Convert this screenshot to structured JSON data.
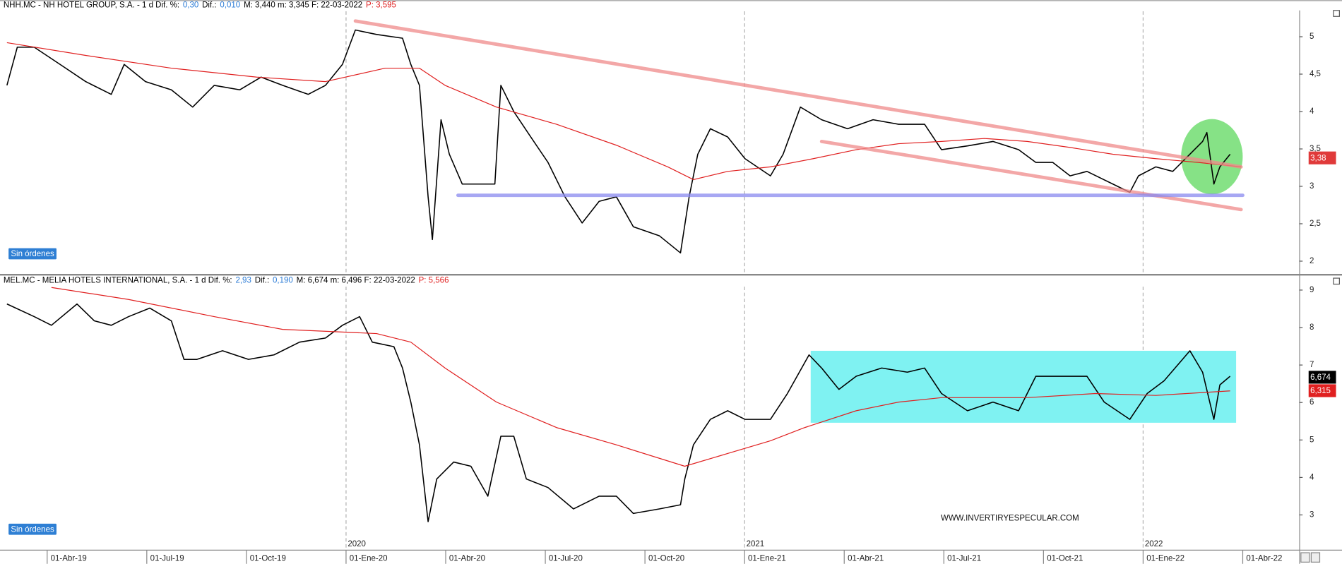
{
  "chart_data": [
    {
      "type": "line",
      "header": [
        {
          "text": "NHH.MC - NH HOTEL GROUP, S.A. -  1 d  Dif. %:",
          "color": "#000000"
        },
        {
          "text": "0,30",
          "color": "#2b7bd6"
        },
        {
          "text": "Dif.:",
          "color": "#000000"
        },
        {
          "text": "0,010",
          "color": "#2b7bd6"
        },
        {
          "text": "M: 3,440  m: 3,345  F: 22-03-2022",
          "color": "#000000"
        },
        {
          "text": "P: 3,595",
          "color": "#e02020"
        }
      ],
      "orders_button": "Sin órdenes",
      "xlim": [
        -1.42,
        37.7
      ],
      "ylim": [
        1.83,
        5.34
      ],
      "yticks": [
        2,
        {
          "value": 2.5,
          "label": "2,5"
        },
        3,
        {
          "value": 3.5,
          "label": "3,5"
        },
        4,
        {
          "value": 4.5,
          "label": "4,5"
        },
        5
      ],
      "series": [
        {
          "color": "#000000",
          "x": [
            -1.21,
            -0.9,
            -0.39,
            0.39,
            1.16,
            1.93,
            2.32,
            2.96,
            3.74,
            4.38,
            5.03,
            5.8,
            6.44,
            7.09,
            7.86,
            8.38,
            8.89,
            9.28,
            9.92,
            10.7,
            10.95,
            11.21,
            11.47,
            11.6,
            11.86,
            12.11,
            12.5,
            13.02,
            13.48,
            13.66,
            14.05,
            14.56,
            15.08,
            15.59,
            16.11,
            16.62,
            17.14,
            17.65,
            18.43,
            19.07,
            19.33,
            19.59,
            19.97,
            20.49,
            21.01,
            21.78,
            22.16,
            22.68,
            23.32,
            24.1,
            24.87,
            25.64,
            26.42,
            26.93,
            27.71,
            28.48,
            29.25,
            29.77,
            30.28,
            30.8,
            31.31,
            32.09,
            32.6,
            32.86,
            33.38,
            33.89,
            34.41,
            34.79,
            34.92,
            35.13,
            35.31,
            35.62
          ],
          "values": [
            4.35,
            4.86,
            4.86,
            4.63,
            4.4,
            4.23,
            4.63,
            4.4,
            4.29,
            4.06,
            4.35,
            4.29,
            4.46,
            4.35,
            4.23,
            4.35,
            4.63,
            5.09,
            5.03,
            4.98,
            4.63,
            4.35,
            2.86,
            2.29,
            3.89,
            3.43,
            3.03,
            3.03,
            3.03,
            4.35,
            4.0,
            3.66,
            3.32,
            2.86,
            2.51,
            2.8,
            2.86,
            2.46,
            2.34,
            2.11,
            2.86,
            3.43,
            3.77,
            3.66,
            3.37,
            3.14,
            3.43,
            4.06,
            3.89,
            3.77,
            3.89,
            3.83,
            3.83,
            3.49,
            3.54,
            3.6,
            3.49,
            3.32,
            3.32,
            3.14,
            3.2,
            3.03,
            2.92,
            3.14,
            3.26,
            3.2,
            3.43,
            3.6,
            3.72,
            3.03,
            3.26,
            3.43
          ]
        },
        {
          "color": "#e02020",
          "x": [
            -1.21,
            1.16,
            3.74,
            6.31,
            8.38,
            10.18,
            11.21,
            11.98,
            13.53,
            15.34,
            17.14,
            18.69,
            19.46,
            20.49,
            21.78,
            23.07,
            24.36,
            25.64,
            26.93,
            28.22,
            29.51,
            30.8,
            32.09,
            33.38,
            34.66,
            35.95
          ],
          "values": [
            4.92,
            4.75,
            4.58,
            4.46,
            4.4,
            4.58,
            4.58,
            4.35,
            4.06,
            3.83,
            3.55,
            3.26,
            3.09,
            3.2,
            3.26,
            3.37,
            3.49,
            3.57,
            3.6,
            3.64,
            3.6,
            3.52,
            3.43,
            3.37,
            3.32,
            3.26
          ]
        }
      ],
      "trend_lines": [
        {
          "color": "#f08a8a",
          "x": [
            9.28,
            35.95
          ],
          "values": [
            5.21,
            3.26
          ]
        },
        {
          "color": "#f08a8a",
          "x": [
            23.32,
            35.95
          ],
          "values": [
            3.6,
            2.69
          ]
        },
        {
          "color": "#8a8af0",
          "x": [
            12.37,
            36.0
          ],
          "values": [
            2.88,
            2.88
          ]
        }
      ],
      "price_tags": [
        {
          "value": 3.38,
          "label": "3,38",
          "color": "#e03a3a"
        }
      ]
    },
    {
      "type": "line",
      "header": [
        {
          "text": "MEL.MC - MELIA HOTELS INTERNATIONAL, S.A. -  1 d  Dif. %:",
          "color": "#000000"
        },
        {
          "text": "2,93",
          "color": "#2b7bd6"
        },
        {
          "text": "Dif.:",
          "color": "#000000"
        },
        {
          "text": "0,190",
          "color": "#2b7bd6"
        },
        {
          "text": "M: 6,674  m: 6,496  F: 22-03-2022",
          "color": "#000000"
        },
        {
          "text": "P: 5,566",
          "color": "#e02020"
        }
      ],
      "orders_button": "Sin órdenes",
      "watermark": "WWW.INVERTIRYESPECULAR.COM",
      "xlim": [
        -1.42,
        37.7
      ],
      "ylim": [
        2.06,
        9.09
      ],
      "yticks": [
        3,
        4,
        5,
        6,
        7,
        8,
        9
      ],
      "xticks": [
        {
          "value": 0,
          "label": "01-Abr-19"
        },
        {
          "value": 3,
          "label": "01-Jul-19"
        },
        {
          "value": 6,
          "label": "01-Oct-19"
        },
        {
          "value": 9,
          "label": "01-Ene-20"
        },
        {
          "value": 12,
          "label": "01-Abr-20"
        },
        {
          "value": 15,
          "label": "01-Jul-20"
        },
        {
          "value": 18,
          "label": "01-Oct-20"
        },
        {
          "value": 21,
          "label": "01-Ene-21"
        },
        {
          "value": 24,
          "label": "01-Abr-21"
        },
        {
          "value": 27,
          "label": "01-Jul-21"
        },
        {
          "value": 30,
          "label": "01-Oct-21"
        },
        {
          "value": 33,
          "label": "01-Ene-22"
        },
        {
          "value": 36,
          "label": "01-Abr-22"
        }
      ],
      "year_ticks": [
        {
          "value": 9,
          "label": "2020"
        },
        {
          "value": 21,
          "label": "2021"
        },
        {
          "value": 33,
          "label": "2022"
        }
      ],
      "range_box": {
        "color": "#7ff2f2",
        "x": [
          22.99,
          35.8
        ],
        "y": [
          5.46,
          7.38
        ]
      },
      "series": [
        {
          "color": "#000000",
          "x": [
            -1.21,
            -0.39,
            0.13,
            0.9,
            1.42,
            1.93,
            2.45,
            3.09,
            3.74,
            4.12,
            4.51,
            5.28,
            6.06,
            6.83,
            7.6,
            8.38,
            8.89,
            9.41,
            9.79,
            10.44,
            10.7,
            10.95,
            11.21,
            11.47,
            11.73,
            12.24,
            12.76,
            13.27,
            13.66,
            14.05,
            14.43,
            15.08,
            15.85,
            16.62,
            17.14,
            17.65,
            18.43,
            19.07,
            19.2,
            19.46,
            19.97,
            20.49,
            21.01,
            21.78,
            22.29,
            22.94,
            23.32,
            23.84,
            24.36,
            25.13,
            25.9,
            26.42,
            26.93,
            27.71,
            28.48,
            29.25,
            29.77,
            30.54,
            31.31,
            31.83,
            32.6,
            33.12,
            33.63,
            34.41,
            34.79,
            35.13,
            35.31,
            35.62
          ],
          "values": [
            8.63,
            8.29,
            8.06,
            8.63,
            8.18,
            8.06,
            8.29,
            8.52,
            8.18,
            7.15,
            7.15,
            7.38,
            7.15,
            7.27,
            7.61,
            7.72,
            8.06,
            8.29,
            7.61,
            7.49,
            6.92,
            6.01,
            4.87,
            2.82,
            3.96,
            4.41,
            4.3,
            3.5,
            5.1,
            5.1,
            3.96,
            3.73,
            3.16,
            3.5,
            3.5,
            3.04,
            3.16,
            3.27,
            3.96,
            4.87,
            5.55,
            5.78,
            5.55,
            5.55,
            6.24,
            7.27,
            6.92,
            6.35,
            6.7,
            6.92,
            6.81,
            6.92,
            6.24,
            5.78,
            6.01,
            5.78,
            6.7,
            6.7,
            6.7,
            6.01,
            5.55,
            6.24,
            6.58,
            7.38,
            6.81,
            5.55,
            6.47,
            6.7
          ]
        },
        {
          "color": "#e02020",
          "x": [
            0.13,
            2.45,
            5.03,
            7.09,
            8.89,
            9.92,
            10.95,
            11.98,
            13.53,
            15.34,
            17.14,
            19.2,
            20.49,
            21.78,
            22.81,
            24.36,
            25.64,
            26.93,
            29.51,
            31.57,
            33.38,
            35.62
          ],
          "values": [
            9.07,
            8.75,
            8.29,
            7.95,
            7.88,
            7.84,
            7.61,
            6.92,
            6.01,
            5.33,
            4.87,
            4.3,
            4.64,
            4.98,
            5.33,
            5.78,
            6.01,
            6.13,
            6.13,
            6.24,
            6.19,
            6.31
          ]
        }
      ],
      "price_tags": [
        {
          "value": 6.674,
          "label": "6,674",
          "color": "#000000"
        },
        {
          "value": 6.315,
          "label": "6,315",
          "color": "#e02020"
        }
      ]
    }
  ]
}
